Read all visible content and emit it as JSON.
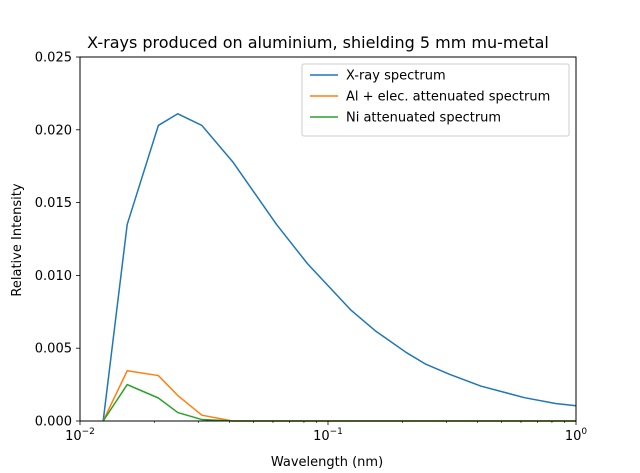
{
  "chart_data": {
    "type": "line",
    "title": "X-rays produced on aluminium, shielding 5 mm mu-metal",
    "xlabel": "Wavelength (nm)",
    "ylabel": "Relative Intensity",
    "xscale": "log",
    "xlim": [
      0.01,
      1
    ],
    "ylim": [
      0,
      0.025
    ],
    "grid": false,
    "legend_position": "upper-right",
    "x_ticks": [
      {
        "value": 0.01,
        "base": "10",
        "exp": "−2"
      },
      {
        "value": 0.1,
        "base": "10",
        "exp": "−1"
      },
      {
        "value": 1,
        "base": "10",
        "exp": "0"
      }
    ],
    "y_ticks": [
      {
        "value": 0,
        "label": "0.000"
      },
      {
        "value": 0.005,
        "label": "0.005"
      },
      {
        "value": 0.01,
        "label": "0.010"
      },
      {
        "value": 0.015,
        "label": "0.015"
      },
      {
        "value": 0.02,
        "label": "0.020"
      },
      {
        "value": 0.025,
        "label": "0.025"
      }
    ],
    "series": [
      {
        "name": "X-ray spectrum",
        "color": "#1f77b4",
        "x": [
          0.0124,
          0.0155,
          0.0207,
          0.0248,
          0.031,
          0.0413,
          0.062,
          0.0827,
          0.124,
          0.155,
          0.207,
          0.248,
          0.31,
          0.413,
          0.62,
          0.827,
          1.0
        ],
        "y": [
          0.0,
          0.0135,
          0.0203,
          0.0211,
          0.0203,
          0.0178,
          0.0135,
          0.0108,
          0.0076,
          0.0062,
          0.0047,
          0.0039,
          0.0032,
          0.0024,
          0.0016,
          0.0012,
          0.00105
        ]
      },
      {
        "name": "Al + elec. attenuated spectrum",
        "color": "#ff7f0e",
        "x": [
          0.0124,
          0.0155,
          0.0207,
          0.0248,
          0.031,
          0.0413,
          0.062,
          0.0827,
          0.124,
          0.155,
          0.207,
          0.248,
          0.31,
          0.413,
          0.62,
          0.827,
          1.0
        ],
        "y": [
          0.0,
          0.00345,
          0.00312,
          0.00175,
          0.0004,
          0.0,
          0.0,
          0.0,
          0.0,
          0.0,
          0.0,
          0.0,
          0.0,
          0.0,
          0.0,
          0.0,
          0.0
        ]
      },
      {
        "name": "Ni attenuated spectrum",
        "color": "#2ca02c",
        "x": [
          0.0124,
          0.0155,
          0.0207,
          0.0248,
          0.031,
          0.0413,
          0.062,
          0.0827,
          0.124,
          0.155,
          0.207,
          0.248,
          0.31,
          0.413,
          0.62,
          0.827,
          1.0
        ],
        "y": [
          0.0,
          0.0025,
          0.00158,
          0.00058,
          0.0001,
          0.0,
          0.0,
          0.0,
          0.0,
          0.0,
          0.0,
          0.0,
          0.0,
          0.0,
          0.0,
          0.0,
          0.0
        ]
      }
    ]
  }
}
